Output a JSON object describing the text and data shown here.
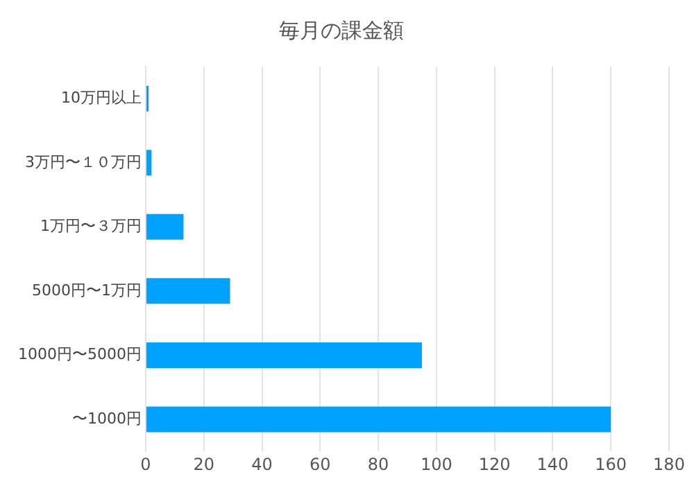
{
  "chart_data": {
    "type": "bar",
    "orientation": "horizontal",
    "title": "毎月の課金額",
    "categories": [
      "10万円以上",
      "3万円〜１０万円",
      "1万円〜３万円",
      "5000円〜1万円",
      "1000円〜5000円",
      "〜1000円"
    ],
    "values": [
      1,
      2,
      13,
      29,
      95,
      160
    ],
    "color": "#00a2ff",
    "xlim": [
      0,
      180
    ],
    "xticks": [
      0,
      20,
      40,
      60,
      80,
      100,
      120,
      140,
      160,
      180
    ],
    "grid": "x",
    "legend": false
  }
}
